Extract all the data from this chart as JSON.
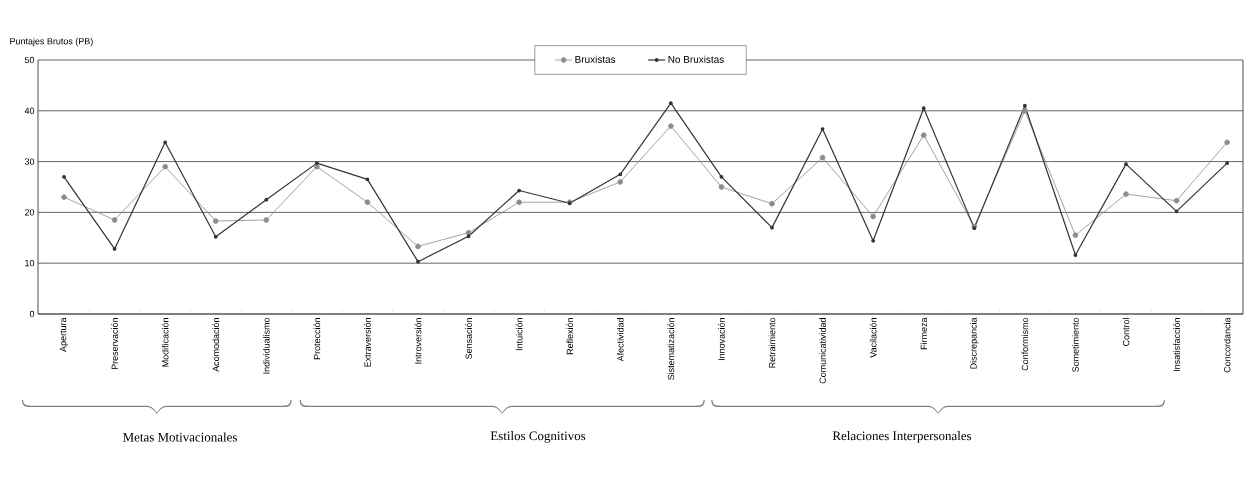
{
  "chart_data": {
    "type": "line",
    "ylabel": "Puntajes Brutos (PB)",
    "categories": [
      "Apertura",
      "Preservación",
      "Modificación",
      "Acomodación",
      "Individualismo",
      "Protección",
      "Extraversión",
      "Introversión",
      "Sensación",
      "Intuición",
      "Reflexión",
      "Afectividad",
      "Sistematización",
      "Innovación",
      "Retraimiento",
      "Comunicatividad",
      "Vacilación",
      "Firmeza",
      "Discrepancia",
      "Conformismo",
      "Sometimiento",
      "Control",
      "Insatisfacción",
      "Concordancia"
    ],
    "series": [
      {
        "name": "Bruxistas",
        "color": "#8c8c8c",
        "values": [
          23,
          18.5,
          29,
          18.3,
          18.5,
          29,
          22,
          13.3,
          16,
          22,
          22,
          26,
          37,
          25,
          21.7,
          30.8,
          19.2,
          35.2,
          17.2,
          40,
          15.5,
          23.6,
          22.3,
          33.8
        ]
      },
      {
        "name": "No Bruxistas",
        "color": "#333333",
        "values": [
          27,
          12.8,
          33.8,
          15.2,
          22.5,
          29.7,
          26.5,
          10.3,
          15.3,
          24.3,
          21.8,
          27.5,
          41.5,
          27,
          17,
          36.4,
          14.4,
          40.5,
          16.9,
          41,
          11.6,
          29.5,
          20.2,
          29.7
        ]
      }
    ],
    "ylim": [
      0,
      50
    ],
    "yticks": [
      0,
      10,
      20,
      30,
      40,
      50
    ],
    "grid": "y",
    "legend": "top",
    "marker": "circle",
    "line_style": "solid",
    "annotations": [
      "Metas Motivacionales",
      "Estilos Cognitivos",
      "Relaciones Interpersonales"
    ]
  }
}
